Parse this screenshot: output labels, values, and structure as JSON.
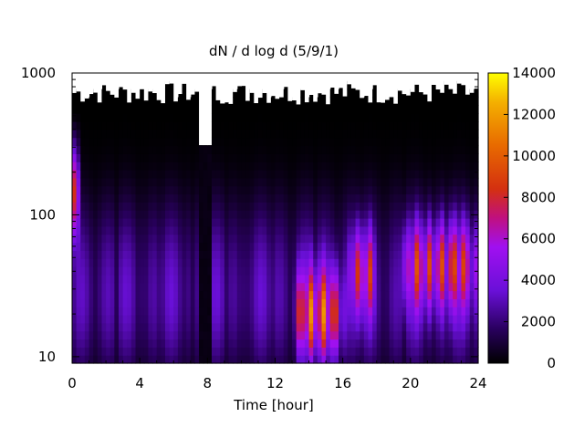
{
  "chart_data": {
    "type": "heatmap",
    "title": "dN / d log d (5/9/1)",
    "xlabel": "Time [hour]",
    "ylabel": "",
    "x_ticks": [
      "0",
      "4",
      "8",
      "12",
      "16",
      "20",
      "24"
    ],
    "y_ticks": [
      "10",
      "100",
      "1000"
    ],
    "y_scale": "log",
    "xlim": [
      0,
      24
    ],
    "ylim": [
      9,
      1000
    ],
    "colorbar": {
      "ticks": [
        "0",
        "2000",
        "4000",
        "6000",
        "8000",
        "10000",
        "12000",
        "14000"
      ],
      "range": [
        0,
        14000
      ],
      "palette": "gnuplot (black-purple-red-orange-yellow)"
    },
    "data_gap": {
      "x_start": 7.6,
      "x_end": 8.3,
      "upper_limit_diameter": 310
    },
    "upper_cutoff_diameter_typical": 600,
    "features": [
      {
        "x_start": 13.2,
        "x_end": 16.0,
        "diameter_peak": 20,
        "level": 9000
      },
      {
        "x_start": 16.5,
        "x_end": 17.8,
        "diameter_peak": 40,
        "level": 6500
      },
      {
        "x_start": 19.5,
        "x_end": 24,
        "diameter_peak": 45,
        "level": 7500
      },
      {
        "x_start": 0,
        "x_end": 0.3,
        "diameter_peak": 150,
        "level": 8000
      }
    ]
  }
}
